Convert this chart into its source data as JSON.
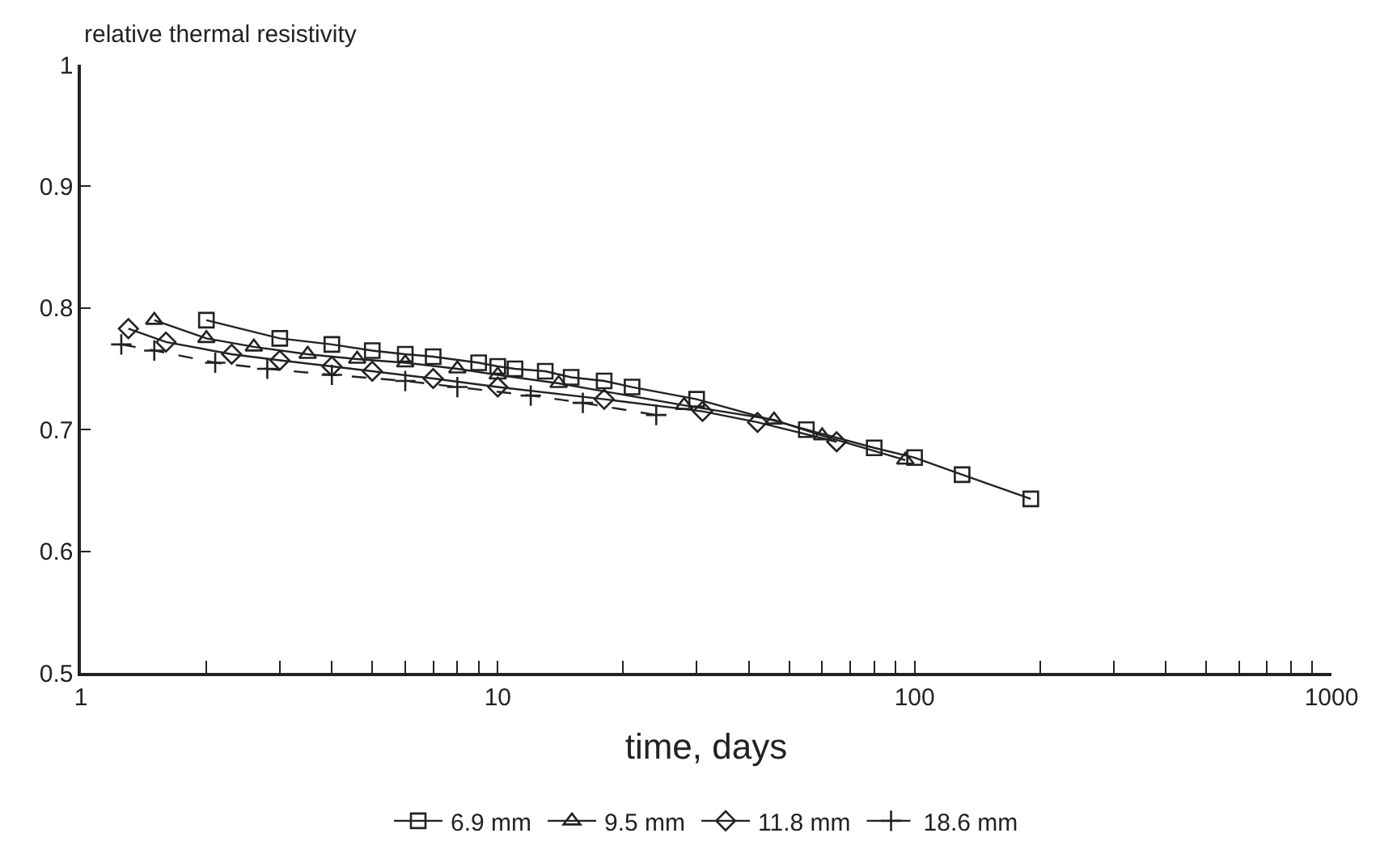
{
  "chart_data": {
    "type": "line",
    "ylabel": "relative thermal resistivity",
    "xlabel": "time, days",
    "log": "x",
    "xlim": [
      1,
      1000
    ],
    "ylim": [
      0.5,
      1
    ],
    "xticks": [
      1,
      {
        "value": 2,
        "label": null
      },
      {
        "value": 3,
        "label": null
      },
      {
        "value": 4,
        "label": null
      },
      {
        "value": 5,
        "label": null
      },
      {
        "value": 6,
        "label": null
      },
      {
        "value": 7,
        "label": null
      },
      {
        "value": 8,
        "label": null
      },
      {
        "value": 9,
        "label": null
      },
      10,
      {
        "value": 20,
        "label": null
      },
      {
        "value": 30,
        "label": null
      },
      {
        "value": 40,
        "label": null
      },
      {
        "value": 50,
        "label": null
      },
      {
        "value": 60,
        "label": null
      },
      {
        "value": 70,
        "label": null
      },
      {
        "value": 80,
        "label": null
      },
      {
        "value": 90,
        "label": null
      },
      100,
      {
        "value": 200,
        "label": null
      },
      {
        "value": 300,
        "label": null
      },
      {
        "value": 400,
        "label": null
      },
      {
        "value": 500,
        "label": null
      },
      {
        "value": 600,
        "label": null
      },
      {
        "value": 700,
        "label": null
      },
      {
        "value": 800,
        "label": null
      },
      {
        "value": 900,
        "label": null
      },
      1000
    ],
    "yticks": [
      0.5,
      0.6,
      0.7,
      0.8,
      0.9,
      1
    ],
    "legend": "bottom",
    "series": [
      {
        "name": "6.9 mm",
        "color": "#222222",
        "marker": "square",
        "line_style": "solid",
        "x": [
          2,
          3,
          4,
          5,
          6,
          7,
          9,
          10,
          11,
          13,
          15,
          18,
          21,
          30,
          55,
          80,
          100,
          130,
          190
        ],
        "values": [
          0.79,
          0.775,
          0.77,
          0.765,
          0.762,
          0.76,
          0.755,
          0.752,
          0.75,
          0.748,
          0.743,
          0.74,
          0.735,
          0.725,
          0.7,
          0.685,
          0.677,
          0.663,
          0.643
        ]
      },
      {
        "name": "9.5 mm",
        "color": "#222222",
        "marker": "triangle",
        "line_style": "solid",
        "x": [
          1.5,
          2,
          2.6,
          3.5,
          4.6,
          6,
          8,
          10,
          14,
          28,
          46,
          60,
          95
        ],
        "values": [
          0.79,
          0.775,
          0.768,
          0.762,
          0.758,
          0.755,
          0.75,
          0.745,
          0.738,
          0.72,
          0.708,
          0.695,
          0.675
        ]
      },
      {
        "name": "11.8 mm",
        "color": "#222222",
        "marker": "diamond",
        "line_style": "solid",
        "x": [
          1.3,
          1.6,
          2.3,
          3,
          4,
          5,
          7,
          10,
          18,
          31,
          42,
          65
        ],
        "values": [
          0.783,
          0.772,
          0.762,
          0.757,
          0.752,
          0.748,
          0.742,
          0.735,
          0.725,
          0.715,
          0.706,
          0.69
        ]
      },
      {
        "name": "18.6 mm",
        "color": "#222222",
        "marker": "cross",
        "line_style": "dashed",
        "x": [
          1.25,
          1.5,
          2.1,
          2.8,
          4,
          6,
          8,
          12,
          16,
          24
        ],
        "values": [
          0.77,
          0.765,
          0.755,
          0.75,
          0.745,
          0.74,
          0.735,
          0.728,
          0.722,
          0.712
        ]
      }
    ]
  }
}
